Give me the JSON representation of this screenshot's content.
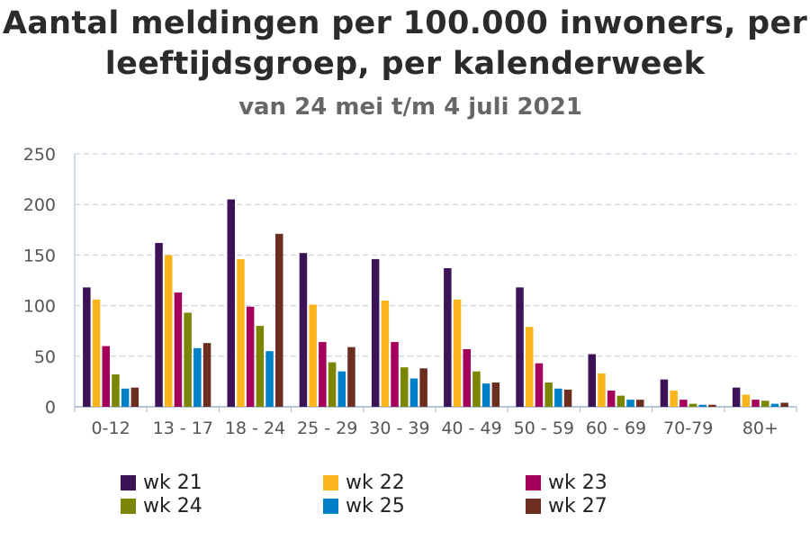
{
  "title_line1": "Aantal meldingen per 100.000 inwoners, per",
  "title_line2": "leeftijdsgroep, per kalenderweek",
  "subtitle": "van 24 mei t/m 4 juli 2021",
  "chart_data": {
    "type": "bar",
    "title": "Aantal meldingen per 100.000 inwoners, per leeftijdsgroep, per kalenderweek",
    "subtitle": "van 24 mei t/m 4 juli 2021",
    "xlabel": "",
    "ylabel": "",
    "ylim": [
      0,
      250
    ],
    "yticks": [
      0,
      50,
      100,
      150,
      200,
      250
    ],
    "grid": true,
    "legend_position": "bottom",
    "categories": [
      "0-12",
      "13 - 17",
      "18 - 24",
      "25 - 29",
      "30 - 39",
      "40 - 49",
      "50 - 59",
      "60 - 69",
      "70-79",
      "80+"
    ],
    "series": [
      {
        "name": "wk 21",
        "color": "#3d1357",
        "values": [
          118,
          162,
          205,
          152,
          146,
          137,
          118,
          52,
          27,
          19
        ]
      },
      {
        "name": "wk 22",
        "color": "#f9b51b",
        "values": [
          106,
          150,
          146,
          101,
          105,
          106,
          79,
          33,
          16,
          12
        ]
      },
      {
        "name": "wk 23",
        "color": "#a4005b",
        "values": [
          60,
          113,
          99,
          64,
          64,
          57,
          43,
          16,
          7,
          7
        ]
      },
      {
        "name": "wk 24",
        "color": "#7a8604",
        "values": [
          32,
          93,
          80,
          44,
          39,
          35,
          24,
          11,
          3,
          6
        ]
      },
      {
        "name": "wk 25",
        "color": "#0080c7",
        "values": [
          18,
          58,
          55,
          35,
          28,
          23,
          18,
          7,
          2,
          3
        ]
      },
      {
        "name": "wk 27",
        "color": "#6b2e1f",
        "values": [
          19,
          63,
          171,
          59,
          38,
          24,
          17,
          7,
          2,
          4
        ]
      }
    ]
  }
}
